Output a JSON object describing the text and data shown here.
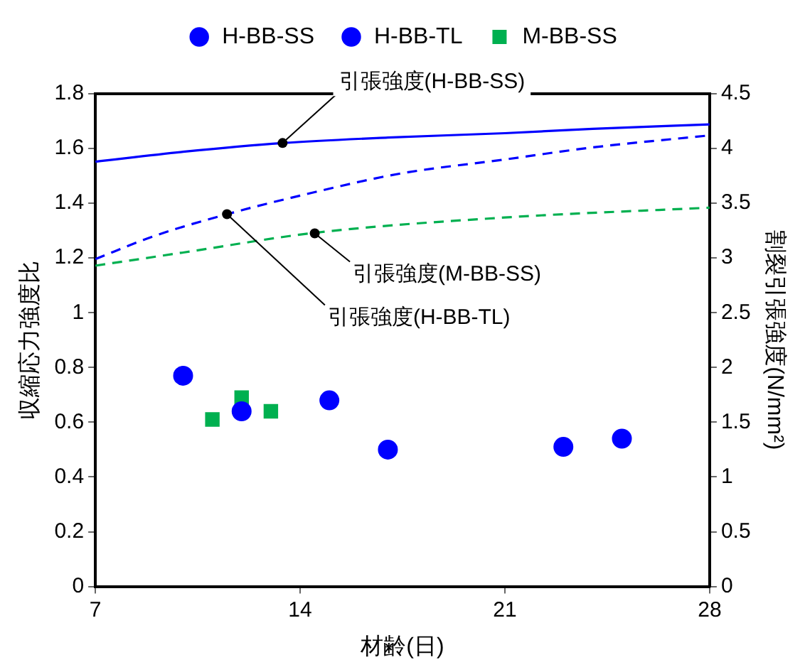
{
  "chart_data": {
    "type": "scatter",
    "xlabel": "材齢(日)",
    "ylabel": "収縮応力強度比",
    "y2label": "割裂引張強度(N/mm²)",
    "xlim": [
      7,
      28
    ],
    "xticks": [
      7,
      14,
      21,
      28
    ],
    "ylim": [
      0,
      1.8
    ],
    "yticks": [
      0,
      0.2,
      0.4,
      0.6,
      0.8,
      1,
      1.2,
      1.4,
      1.6,
      1.8
    ],
    "y2lim": [
      0,
      4.5
    ],
    "y2ticks": [
      0,
      0.5,
      1,
      1.5,
      2,
      2.5,
      3,
      3.5,
      4,
      4.5
    ],
    "grid": false,
    "legend": "top",
    "series": [
      {
        "name": "H-BB-SS",
        "marker": "circle",
        "color": "#0000ff",
        "x": [
          17,
          23,
          25
        ],
        "values": [
          0.5,
          0.51,
          0.54
        ]
      },
      {
        "name": "H-BB-TL",
        "marker": "circle",
        "color": "#0000ff",
        "x": [
          10,
          12,
          15
        ],
        "values": [
          0.77,
          0.64,
          0.68
        ]
      },
      {
        "name": "M-BB-SS",
        "marker": "square",
        "color": "#00b050",
        "x": [
          11,
          12,
          13
        ],
        "values": [
          0.61,
          0.69,
          0.64
        ]
      },
      {
        "type": "line",
        "axis": "y2",
        "line_style": "solid",
        "marker": "none",
        "color": "#0000ff",
        "x": [
          7,
          10,
          13.4,
          17,
          21,
          24,
          28
        ],
        "values": [
          3.88,
          3.97,
          4.05,
          4.1,
          4.14,
          4.18,
          4.22
        ]
      },
      {
        "type": "line",
        "axis": "y2",
        "line_style": "dashed",
        "marker": "none",
        "color": "#0000ff",
        "x": [
          7,
          9,
          11.5,
          14,
          17.4,
          21,
          24,
          28
        ],
        "values": [
          2.99,
          3.2,
          3.4,
          3.57,
          3.77,
          3.9,
          4.01,
          4.12
        ]
      },
      {
        "type": "line",
        "axis": "y2",
        "line_style": "dashed",
        "marker": "none",
        "color": "#00b050",
        "x": [
          7,
          10,
          14.5,
          21,
          28
        ],
        "values": [
          2.93,
          3.05,
          3.23,
          3.37,
          3.46
        ]
      }
    ],
    "annotations": [
      {
        "text": "引張強度(H-BB-SS)",
        "x": 13.4,
        "y": 1.62
      },
      {
        "text": "引張強度(H-BB-TL)",
        "x": 11.5,
        "y": 1.36
      },
      {
        "text": "引張強度(M-BB-SS)",
        "x": 14.5,
        "y": 1.29
      }
    ]
  }
}
